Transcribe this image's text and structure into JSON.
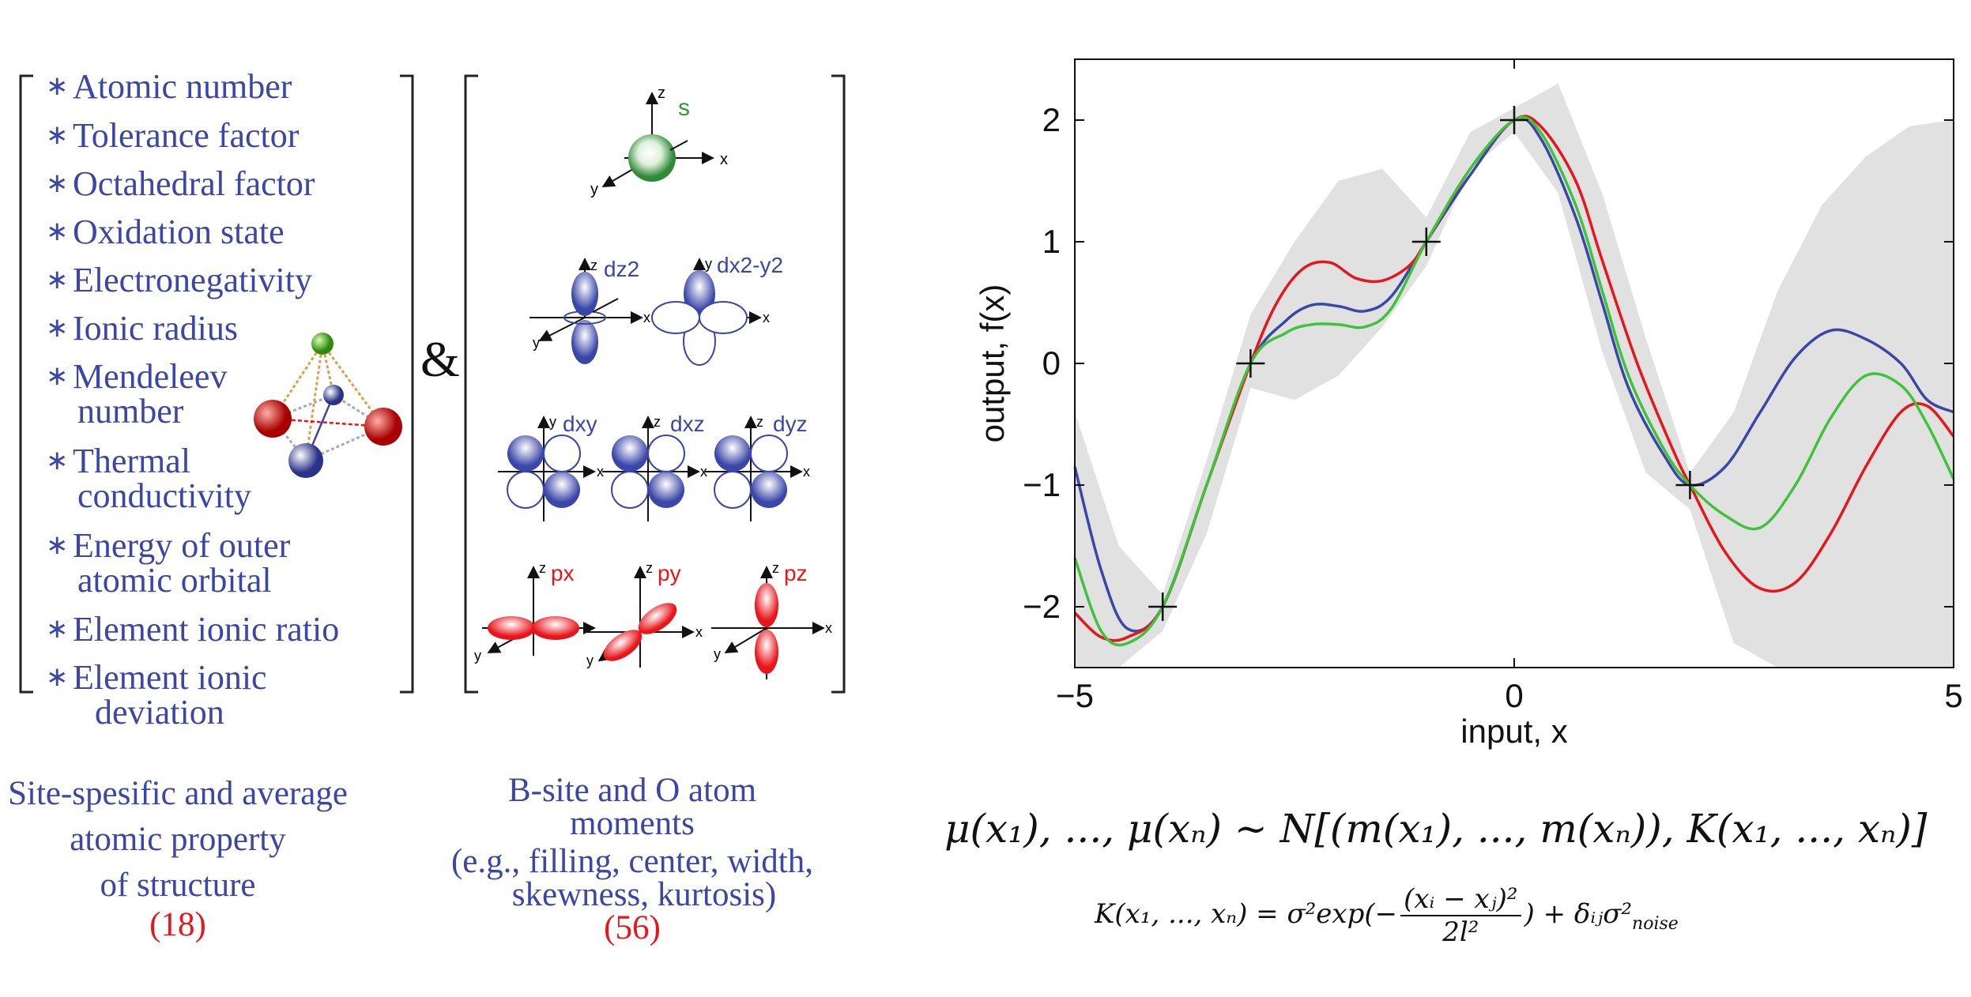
{
  "features": {
    "bullet": "∗",
    "items": [
      {
        "label": "Atomic number"
      },
      {
        "label": "Tolerance factor"
      },
      {
        "label": "Octahedral factor"
      },
      {
        "label": "Oxidation state"
      },
      {
        "label": "Electronegativity"
      },
      {
        "label": "Ionic radius"
      },
      {
        "label": "Mendeleev",
        "label2": "number"
      },
      {
        "label": "Thermal",
        "label2": "conductivity"
      },
      {
        "label": "Energy of outer",
        "label2": "atomic orbital"
      },
      {
        "label": "Element ionic ratio"
      },
      {
        "label": "Element ionic",
        "label2": "deviation"
      }
    ]
  },
  "ampersand": "&",
  "orbitals": {
    "s": "s",
    "dz2": "dz2",
    "dx2y2": "dx2-y2",
    "dxy": "dxy",
    "dxz": "dxz",
    "dyz": "dyz",
    "px": "px",
    "py": "py",
    "pz": "pz",
    "axis_x": "x",
    "axis_y": "y",
    "axis_z": "z",
    "colors": {
      "s": "#2f9a3a",
      "d": "#3a46a8",
      "p": "#e8151b"
    }
  },
  "captions": {
    "left": {
      "line1": "Site-spesific and average",
      "line2": "atomic property",
      "line3": "of structure",
      "count": "(18)"
    },
    "middle": {
      "line1": "B-site and O atom",
      "line2": "moments",
      "line3": "(e.g., filling, center, width,",
      "line4": "skewness, kurtosis)",
      "count": "(56)"
    }
  },
  "chart_data": {
    "type": "line",
    "xlabel": "input, x",
    "ylabel": "output, f(x)",
    "xlim": [
      -5,
      5
    ],
    "ylim": [
      -2.5,
      2.5
    ],
    "xticks": [
      -5,
      0,
      5
    ],
    "yticks": [
      2,
      1,
      0,
      -1,
      -2
    ],
    "grid": false,
    "observations": {
      "x": [
        -4,
        -3,
        -1,
        0,
        2
      ],
      "y": [
        -2,
        0,
        1,
        2,
        -1
      ]
    },
    "band": {
      "x": [
        -5,
        -4.5,
        -4,
        -3.5,
        -3,
        -2.5,
        -2,
        -1.5,
        -1,
        -0.5,
        0,
        0.5,
        1,
        1.5,
        2,
        2.5,
        3,
        3.5,
        4,
        4.5,
        5
      ],
      "upper": [
        -0.4,
        -1.5,
        -1.9,
        -0.8,
        0.4,
        1.0,
        1.5,
        1.6,
        1.2,
        1.9,
        2.1,
        2.3,
        1.4,
        0.2,
        -0.9,
        -0.4,
        0.6,
        1.3,
        1.7,
        1.95,
        2.0
      ],
      "lower": [
        -2.5,
        -2.5,
        -2.2,
        -1.4,
        -0.2,
        -0.3,
        -0.1,
        0.3,
        0.8,
        1.6,
        1.9,
        1.4,
        0.1,
        -0.9,
        -1.2,
        -2.3,
        -2.5,
        -2.5,
        -2.5,
        -2.5,
        -2.5
      ]
    },
    "series": [
      {
        "color": "#3a46a8",
        "x": [
          -5,
          -4.7,
          -4.4,
          -4,
          -3.5,
          -3,
          -2.6,
          -2.3,
          -2.0,
          -1.7,
          -1.4,
          -1,
          -0.5,
          0,
          0.3,
          0.7,
          1.0,
          1.3,
          1.7,
          2,
          2.4,
          2.8,
          3.2,
          3.6,
          4.0,
          4.4,
          4.7,
          5
        ],
        "y": [
          -0.85,
          -1.7,
          -2.18,
          -2.0,
          -1.0,
          0.0,
          0.35,
          0.48,
          0.47,
          0.43,
          0.55,
          1.0,
          1.55,
          2.0,
          1.85,
          1.2,
          0.5,
          -0.2,
          -0.75,
          -1.0,
          -0.85,
          -0.4,
          0.05,
          0.27,
          0.2,
          0.0,
          -0.3,
          -0.4
        ]
      },
      {
        "color": "#e8151b",
        "x": [
          -5,
          -4.7,
          -4.4,
          -4,
          -3.5,
          -3,
          -2.7,
          -2.4,
          -2.1,
          -1.8,
          -1.5,
          -1.2,
          -1,
          -0.5,
          0,
          0.3,
          0.7,
          1.0,
          1.4,
          1.8,
          2,
          2.4,
          2.8,
          3.2,
          3.6,
          4.0,
          4.4,
          4.7,
          5
        ],
        "y": [
          -2.05,
          -2.25,
          -2.25,
          -2.0,
          -1.0,
          0.0,
          0.5,
          0.78,
          0.83,
          0.7,
          0.68,
          0.8,
          1.0,
          1.6,
          2.0,
          1.95,
          1.5,
          0.85,
          0.0,
          -0.7,
          -1.0,
          -1.55,
          -1.85,
          -1.8,
          -1.4,
          -0.85,
          -0.4,
          -0.35,
          -0.6
        ]
      },
      {
        "color": "#3ec43a",
        "x": [
          -5,
          -4.7,
          -4.4,
          -4,
          -3.5,
          -3,
          -2.6,
          -2.3,
          -2.0,
          -1.7,
          -1.4,
          -1,
          -0.5,
          0,
          0.3,
          0.7,
          1.0,
          1.3,
          1.7,
          2,
          2.4,
          2.8,
          3.2,
          3.6,
          4.0,
          4.4,
          4.7,
          5
        ],
        "y": [
          -1.6,
          -2.2,
          -2.3,
          -2.0,
          -1.0,
          0.0,
          0.25,
          0.32,
          0.32,
          0.3,
          0.45,
          1.0,
          1.6,
          2.0,
          1.9,
          1.3,
          0.6,
          -0.1,
          -0.7,
          -1.0,
          -1.25,
          -1.35,
          -1.0,
          -0.45,
          -0.1,
          -0.18,
          -0.5,
          -0.95
        ]
      }
    ]
  },
  "formulas": {
    "main": "μ(x₁), ..., μ(xₙ)  ∼ N[(m(x₁), ..., m(xₙ)), K(x₁, ..., xₙ)]",
    "kernel_lhs": "K(x₁, ..., xₙ) = σ²exp(−",
    "kernel_num": "(xᵢ − xⱼ)²",
    "kernel_den": "2l²",
    "kernel_rhs": ") + δᵢⱼσ²",
    "kernel_sub": "noise"
  }
}
